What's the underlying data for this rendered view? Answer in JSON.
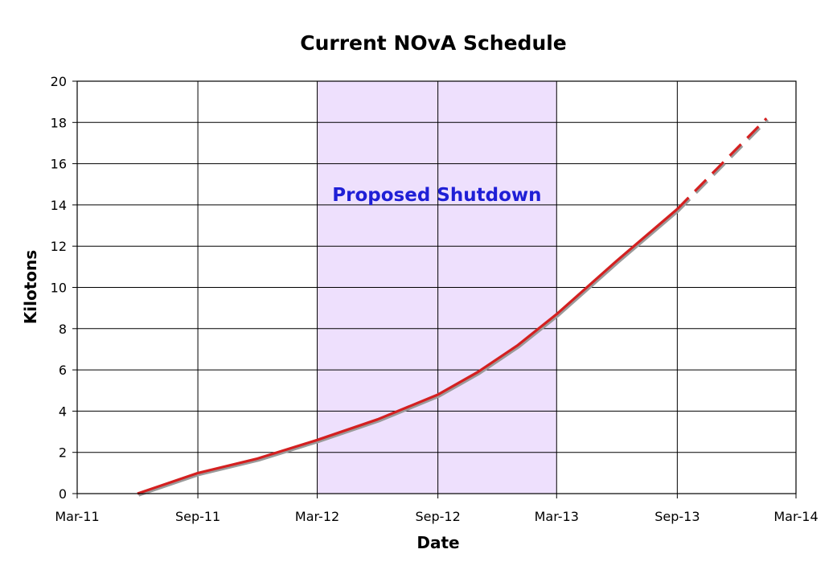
{
  "chart_data": {
    "type": "line",
    "title": "Current NOvA Schedule",
    "xlabel": "Date",
    "ylabel": "Kilotons",
    "x_tick_labels": [
      "Mar-11",
      "Sep-11",
      "Mar-12",
      "Sep-12",
      "Mar-13",
      "Sep-13",
      "Mar-14"
    ],
    "x_ticks": [
      "2011-03-01",
      "2011-09-01",
      "2012-03-01",
      "2012-09-01",
      "2013-03-01",
      "2013-09-01",
      "2014-03-01"
    ],
    "xlim": [
      "2011-03-01",
      "2014-03-01"
    ],
    "yticks": [
      0,
      2,
      4,
      6,
      8,
      10,
      12,
      14,
      16,
      18,
      20
    ],
    "ylim": [
      0,
      20
    ],
    "grid": true,
    "legend": "none",
    "shaded_region": {
      "label": "Proposed Shutdown",
      "x_start": "2012-03-01",
      "x_end": "2013-03-01",
      "color": "#eee0fd"
    },
    "series": [
      {
        "style": "solid",
        "color": "#d42020",
        "points": [
          {
            "x": "2011-06-01",
            "y": 0
          },
          {
            "x": "2011-09-01",
            "y": 1.0
          },
          {
            "x": "2011-12-01",
            "y": 1.7
          },
          {
            "x": "2012-03-01",
            "y": 2.6
          },
          {
            "x": "2012-06-01",
            "y": 3.6
          },
          {
            "x": "2012-09-01",
            "y": 4.8
          },
          {
            "x": "2012-11-01",
            "y": 5.9
          },
          {
            "x": "2013-01-01",
            "y": 7.2
          },
          {
            "x": "2013-03-01",
            "y": 8.7
          },
          {
            "x": "2013-06-01",
            "y": 11.3
          },
          {
            "x": "2013-09-01",
            "y": 13.8
          }
        ]
      },
      {
        "style": "dashed",
        "color": "#d42020",
        "points": [
          {
            "x": "2013-09-01",
            "y": 13.8
          },
          {
            "x": "2014-01-15",
            "y": 18.2
          }
        ]
      }
    ]
  }
}
